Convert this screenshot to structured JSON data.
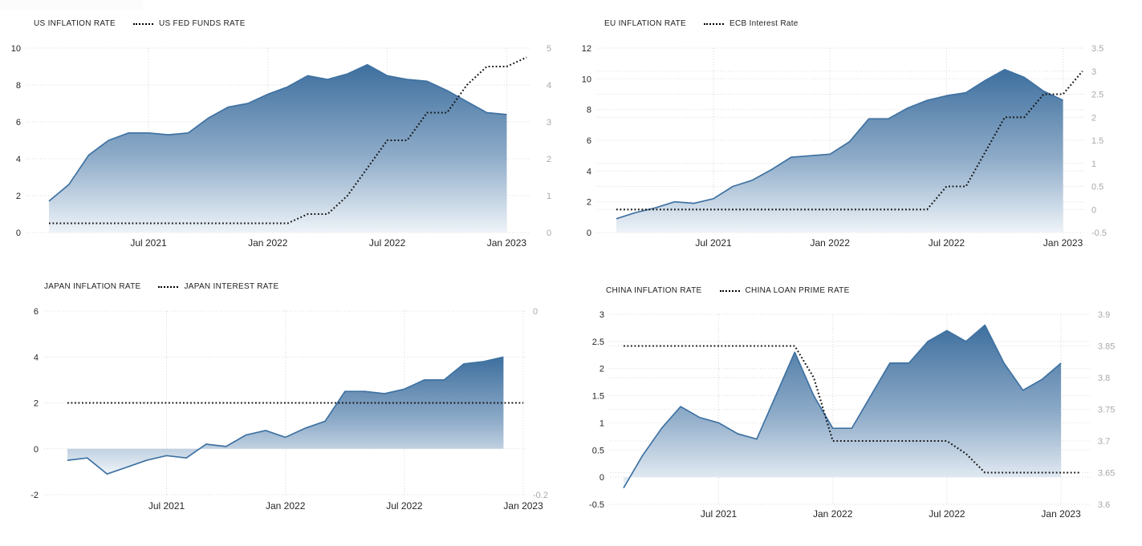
{
  "page": {
    "background": "#ffffff"
  },
  "colors": {
    "area_top": "#3E6F9E",
    "area_mid": "#8FACC9",
    "area_bottom": "#EEF3F8",
    "area_stroke": "#3F72A2",
    "dotted_line": "#141414",
    "gridline": "#D6D6D6",
    "tick_left": "#262626",
    "tick_right": "#A9A9A9",
    "x_label": "#262626",
    "legend_text": "#222222"
  },
  "chart_data": [
    {
      "id": "us",
      "type": "area",
      "title": "US inflation rate vs US fed funds rate",
      "x": {
        "start": "Feb 2021",
        "tick_labels": [
          "Jul 2021",
          "Jan 2022",
          "Jul 2022",
          "Jan 2023"
        ],
        "tick_months": [
          5,
          11,
          17,
          23
        ]
      },
      "y_left": {
        "min": 0,
        "max": 10,
        "ticks": [
          0,
          2,
          4,
          6,
          8,
          10
        ]
      },
      "y_right": {
        "min": 0,
        "max": 5,
        "ticks": [
          0,
          1,
          2,
          3,
          4,
          5
        ]
      },
      "series": [
        {
          "name": "US INFLATION RATE",
          "style": "area",
          "axis": "left",
          "values": [
            1.7,
            2.6,
            4.2,
            5.0,
            5.4,
            5.4,
            5.3,
            5.4,
            6.2,
            6.8,
            7.0,
            7.5,
            7.9,
            8.5,
            8.3,
            8.6,
            9.1,
            8.5,
            8.3,
            8.2,
            7.7,
            7.1,
            6.5,
            6.4
          ]
        },
        {
          "name": "US FED FUNDS RATE",
          "style": "dotted",
          "axis": "right",
          "values": [
            0.25,
            0.25,
            0.25,
            0.25,
            0.25,
            0.25,
            0.25,
            0.25,
            0.25,
            0.25,
            0.25,
            0.25,
            0.25,
            0.5,
            0.5,
            1.0,
            1.75,
            2.5,
            2.5,
            3.25,
            3.25,
            4.0,
            4.5,
            4.5,
            4.75
          ]
        }
      ]
    },
    {
      "id": "eu",
      "type": "area",
      "title": "EU inflation rate vs ECB interest rate",
      "x": {
        "start": "Feb 2021",
        "tick_labels": [
          "Jul 2021",
          "Jan 2022",
          "Jul 2022",
          "Jan 2023"
        ],
        "tick_months": [
          5,
          11,
          17,
          23
        ]
      },
      "y_left": {
        "min": 0,
        "max": 12,
        "ticks": [
          0,
          2,
          4,
          6,
          8,
          10,
          12
        ]
      },
      "y_right": {
        "min": -0.5,
        "max": 3.5,
        "ticks": [
          -0.5,
          0,
          0.5,
          1,
          1.5,
          2,
          2.5,
          3,
          3.5
        ]
      },
      "series": [
        {
          "name": "EU INFLATION RATE",
          "style": "area",
          "axis": "left",
          "values": [
            0.9,
            1.3,
            1.6,
            2.0,
            1.9,
            2.2,
            3.0,
            3.4,
            4.1,
            4.9,
            5.0,
            5.1,
            5.9,
            7.4,
            7.4,
            8.1,
            8.6,
            8.9,
            9.1,
            9.9,
            10.6,
            10.1,
            9.2,
            8.6
          ]
        },
        {
          "name": "ECB Interest Rate",
          "style": "dotted",
          "axis": "right",
          "values": [
            0,
            0,
            0,
            0,
            0,
            0,
            0,
            0,
            0,
            0,
            0,
            0,
            0,
            0,
            0,
            0,
            0,
            0.5,
            0.5,
            1.25,
            2.0,
            2.0,
            2.5,
            2.5,
            3.0
          ]
        }
      ]
    },
    {
      "id": "japan",
      "type": "area",
      "title": "Japan inflation rate vs Japan interest rate",
      "x": {
        "start": "Feb 2021",
        "tick_labels": [
          "Jul 2021",
          "Jan 2022",
          "Jul 2022",
          "Jan 2023"
        ],
        "tick_months": [
          5,
          11,
          17,
          23
        ]
      },
      "y_left": {
        "min": -2,
        "max": 6,
        "ticks": [
          -2,
          0,
          2,
          4,
          6
        ]
      },
      "y_right": {
        "min": -0.2,
        "max": 0,
        "ticks": [
          0,
          -0.2
        ]
      },
      "series": [
        {
          "name": "JAPAN INFLATION RATE",
          "style": "area",
          "axis": "left",
          "values": [
            -0.5,
            -0.4,
            -1.1,
            -0.8,
            -0.5,
            -0.3,
            -0.4,
            0.2,
            0.1,
            0.6,
            0.8,
            0.5,
            0.9,
            1.2,
            2.5,
            2.5,
            2.4,
            2.6,
            3.0,
            3.0,
            3.7,
            3.8,
            4.0
          ]
        },
        {
          "name": "JAPAN INTEREST RATE",
          "style": "dotted",
          "axis": "right",
          "values": [
            -0.1,
            -0.1,
            -0.1,
            -0.1,
            -0.1,
            -0.1,
            -0.1,
            -0.1,
            -0.1,
            -0.1,
            -0.1,
            -0.1,
            -0.1,
            -0.1,
            -0.1,
            -0.1,
            -0.1,
            -0.1,
            -0.1,
            -0.1,
            -0.1,
            -0.1,
            -0.1,
            -0.1
          ]
        }
      ]
    },
    {
      "id": "china",
      "type": "area",
      "title": "China inflation rate vs China loan prime rate",
      "x": {
        "start": "Feb 2021",
        "tick_labels": [
          "Jul 2021",
          "Jan 2022",
          "Jul 2022",
          "Jan 2023"
        ],
        "tick_months": [
          5,
          11,
          17,
          23
        ]
      },
      "y_left": {
        "min": -0.5,
        "max": 3,
        "ticks": [
          -0.5,
          0,
          0.5,
          1,
          1.5,
          2,
          2.5,
          3
        ]
      },
      "y_right": {
        "min": 3.6,
        "max": 3.9,
        "ticks": [
          3.6,
          3.65,
          3.7,
          3.75,
          3.8,
          3.85,
          3.9
        ]
      },
      "series": [
        {
          "name": "CHINA INFLATION RATE",
          "style": "area",
          "axis": "left",
          "values": [
            -0.2,
            0.4,
            0.9,
            1.3,
            1.1,
            1.0,
            0.8,
            0.7,
            1.5,
            2.3,
            1.5,
            0.9,
            0.9,
            1.5,
            2.1,
            2.1,
            2.5,
            2.7,
            2.5,
            2.8,
            2.1,
            1.6,
            1.8,
            2.1
          ]
        },
        {
          "name": "CHINA LOAN PRIME RATE",
          "style": "dotted",
          "axis": "right",
          "values": [
            3.85,
            3.85,
            3.85,
            3.85,
            3.85,
            3.85,
            3.85,
            3.85,
            3.85,
            3.85,
            3.8,
            3.7,
            3.7,
            3.7,
            3.7,
            3.7,
            3.7,
            3.7,
            3.68,
            3.65,
            3.65,
            3.65,
            3.65,
            3.65,
            3.65
          ]
        }
      ]
    }
  ]
}
